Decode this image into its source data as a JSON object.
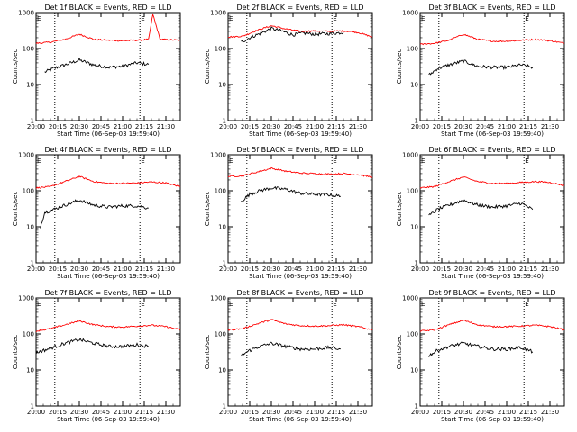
{
  "figure": {
    "background": "#ffffff",
    "event_color": "#000000",
    "lld_color": "#ff0000"
  },
  "chart_data": [
    {
      "type": "line",
      "title": "Det 1f BLACK = Events, RED = LLD",
      "xlabel": "Start Time (06-Sep-03 19:59:40)",
      "ylabel": "Counts/sec",
      "x_tick_labels": [
        "20:00",
        "20:15",
        "20:30",
        "20:45",
        "21:00",
        "21:15",
        "21:30"
      ],
      "y_tick_labels": [
        "1",
        "10",
        "100",
        "1000"
      ],
      "xlim": [
        "20:00",
        "21:40"
      ],
      "ylim": [
        1,
        1000
      ],
      "yscale": "log",
      "vertical_dotted_lines": [
        "20:13",
        "21:12"
      ],
      "markers": [
        {
          "text": "E",
          "x": "20:00"
        },
        {
          "text": "E",
          "x": "21:12"
        }
      ],
      "series": [
        {
          "color": "#000000",
          "x": [
            "20:06",
            "20:12",
            "20:20",
            "20:30",
            "20:40",
            "20:50",
            "21:00",
            "21:10",
            "21:18"
          ],
          "values": [
            22,
            28,
            35,
            48,
            35,
            30,
            32,
            40,
            36
          ]
        },
        {
          "color": "#ff0000",
          "x": [
            "20:00",
            "20:10",
            "20:20",
            "20:30",
            "20:40",
            "20:50",
            "21:00",
            "21:10",
            "21:18",
            "21:21",
            "21:26",
            "21:40"
          ],
          "values": [
            140,
            150,
            180,
            250,
            180,
            170,
            165,
            170,
            180,
            900,
            180,
            170
          ]
        }
      ]
    },
    {
      "type": "line",
      "title": "Det 2f BLACK = Events, RED = LLD",
      "xlabel": "Start Time (06-Sep-03 19:59:40)",
      "ylabel": "Counts/sec",
      "x_tick_labels": [
        "20:00",
        "20:15",
        "20:30",
        "20:45",
        "21:00",
        "21:15",
        "21:30"
      ],
      "y_tick_labels": [
        "1",
        "10",
        "100",
        "1000"
      ],
      "xlim": [
        "20:00",
        "21:40"
      ],
      "ylim": [
        1,
        1000
      ],
      "yscale": "log",
      "vertical_dotted_lines": [
        "20:13",
        "21:12"
      ],
      "markers": [
        {
          "text": "E",
          "x": "20:00"
        },
        {
          "text": "E",
          "x": "21:12"
        }
      ],
      "series": [
        {
          "color": "#000000",
          "x": [
            "20:09",
            "20:15",
            "20:22",
            "20:30",
            "20:38",
            "20:45",
            "20:52",
            "21:00",
            "21:10",
            "21:20"
          ],
          "values": [
            150,
            200,
            260,
            360,
            300,
            240,
            270,
            250,
            260,
            280
          ]
        },
        {
          "color": "#ff0000",
          "x": [
            "20:00",
            "20:10",
            "20:20",
            "20:30",
            "20:40",
            "20:50",
            "21:00",
            "21:10",
            "21:20",
            "21:30",
            "21:40"
          ],
          "values": [
            210,
            220,
            320,
            430,
            350,
            300,
            310,
            300,
            310,
            280,
            210
          ]
        }
      ]
    },
    {
      "type": "line",
      "title": "Det 3f BLACK = Events, RED = LLD",
      "xlabel": "Start Time (06-Sep-03 19:59:40)",
      "ylabel": "Counts/sec",
      "x_tick_labels": [
        "20:00",
        "20:15",
        "20:30",
        "20:45",
        "21:00",
        "21:15",
        "21:30"
      ],
      "y_tick_labels": [
        "1",
        "10",
        "100",
        "1000"
      ],
      "xlim": [
        "20:00",
        "21:40"
      ],
      "ylim": [
        1,
        1000
      ],
      "yscale": "log",
      "vertical_dotted_lines": [
        "20:13",
        "21:12"
      ],
      "markers": [
        {
          "text": "E",
          "x": "20:00"
        },
        {
          "text": "E",
          "x": "21:12"
        }
      ],
      "series": [
        {
          "color": "#000000",
          "x": [
            "20:06",
            "20:12",
            "20:20",
            "20:30",
            "20:40",
            "20:50",
            "21:00",
            "21:10",
            "21:18"
          ],
          "values": [
            18,
            28,
            35,
            45,
            32,
            30,
            30,
            35,
            30
          ]
        },
        {
          "color": "#ff0000",
          "x": [
            "20:00",
            "20:10",
            "20:20",
            "20:30",
            "20:40",
            "20:50",
            "21:00",
            "21:10",
            "21:20",
            "21:30",
            "21:40"
          ],
          "values": [
            130,
            140,
            170,
            250,
            180,
            160,
            160,
            170,
            180,
            165,
            140
          ]
        }
      ]
    },
    {
      "type": "line",
      "title": "Det 4f BLACK = Events, RED = LLD",
      "xlabel": "Start Time (06-Sep-03 19:59:40)",
      "ylabel": "Counts/sec",
      "x_tick_labels": [
        "20:00",
        "20:15",
        "20:30",
        "20:45",
        "21:00",
        "21:15",
        "21:30"
      ],
      "y_tick_labels": [
        "1",
        "10",
        "100",
        "1000"
      ],
      "xlim": [
        "20:00",
        "21:40"
      ],
      "ylim": [
        1,
        1000
      ],
      "yscale": "log",
      "vertical_dotted_lines": [
        "20:13",
        "21:12"
      ],
      "markers": [
        {
          "text": "E",
          "x": "20:00"
        },
        {
          "text": "E",
          "x": "21:12"
        }
      ],
      "series": [
        {
          "color": "#000000",
          "x": [
            "20:03",
            "20:06",
            "20:12",
            "20:20",
            "20:30",
            "20:40",
            "20:50",
            "21:00",
            "21:10",
            "21:18"
          ],
          "values": [
            10,
            25,
            30,
            40,
            55,
            40,
            35,
            38,
            38,
            33
          ]
        },
        {
          "color": "#ff0000",
          "x": [
            "20:00",
            "20:10",
            "20:20",
            "20:30",
            "20:40",
            "20:50",
            "21:00",
            "21:10",
            "21:20",
            "21:30",
            "21:40"
          ],
          "values": [
            120,
            130,
            180,
            250,
            180,
            160,
            160,
            165,
            175,
            165,
            130
          ]
        }
      ]
    },
    {
      "type": "line",
      "title": "Det 5f BLACK = Events, RED = LLD",
      "xlabel": "Start Time (06-Sep-03 19:59:40)",
      "ylabel": "Counts/sec",
      "x_tick_labels": [
        "20:00",
        "20:15",
        "20:30",
        "20:45",
        "21:00",
        "21:15",
        "21:30"
      ],
      "y_tick_labels": [
        "1",
        "10",
        "100",
        "1000"
      ],
      "xlim": [
        "20:00",
        "21:40"
      ],
      "ylim": [
        1,
        1000
      ],
      "yscale": "log",
      "vertical_dotted_lines": [
        "20:13",
        "21:12"
      ],
      "markers": [
        {
          "text": "E",
          "x": "20:00"
        },
        {
          "text": "E",
          "x": "21:12"
        }
      ],
      "series": [
        {
          "color": "#000000",
          "x": [
            "20:09",
            "20:15",
            "20:22",
            "20:30",
            "20:40",
            "20:50",
            "21:00",
            "21:10",
            "21:18"
          ],
          "values": [
            50,
            80,
            100,
            120,
            110,
            85,
            80,
            78,
            70
          ]
        },
        {
          "color": "#ff0000",
          "x": [
            "20:00",
            "20:10",
            "20:20",
            "20:30",
            "20:40",
            "20:50",
            "21:00",
            "21:10",
            "21:20",
            "21:30",
            "21:40"
          ],
          "values": [
            250,
            260,
            330,
            420,
            350,
            310,
            300,
            290,
            300,
            280,
            240
          ]
        }
      ]
    },
    {
      "type": "line",
      "title": "Det 6f BLACK = Events, RED = LLD",
      "xlabel": "Start Time (06-Sep-03 19:59:40)",
      "ylabel": "Counts/sec",
      "x_tick_labels": [
        "20:00",
        "20:15",
        "20:30",
        "20:45",
        "21:00",
        "21:15",
        "21:30"
      ],
      "y_tick_labels": [
        "1",
        "10",
        "100",
        "1000"
      ],
      "xlim": [
        "20:00",
        "21:40"
      ],
      "ylim": [
        1,
        1000
      ],
      "yscale": "log",
      "vertical_dotted_lines": [
        "20:13",
        "21:12"
      ],
      "markers": [
        {
          "text": "E",
          "x": "20:00"
        },
        {
          "text": "E",
          "x": "21:12"
        }
      ],
      "series": [
        {
          "color": "#000000",
          "x": [
            "20:06",
            "20:12",
            "20:20",
            "20:30",
            "20:40",
            "20:50",
            "21:00",
            "21:10",
            "21:18"
          ],
          "values": [
            20,
            30,
            40,
            55,
            40,
            35,
            38,
            45,
            30
          ]
        },
        {
          "color": "#ff0000",
          "x": [
            "20:00",
            "20:10",
            "20:20",
            "20:30",
            "20:40",
            "20:50",
            "21:00",
            "21:10",
            "21:20",
            "21:30",
            "21:40"
          ],
          "values": [
            120,
            130,
            180,
            240,
            180,
            160,
            160,
            170,
            180,
            170,
            140
          ]
        }
      ]
    },
    {
      "type": "line",
      "title": "Det 7f BLACK = Events, RED = LLD",
      "xlabel": "Start Time (06-Sep-03 19:59:40)",
      "ylabel": "Counts/sec",
      "x_tick_labels": [
        "20:00",
        "20:15",
        "20:30",
        "20:45",
        "21:00",
        "21:15",
        "21:30"
      ],
      "y_tick_labels": [
        "1",
        "10",
        "100",
        "1000"
      ],
      "xlim": [
        "20:00",
        "21:40"
      ],
      "ylim": [
        1,
        1000
      ],
      "yscale": "log",
      "vertical_dotted_lines": [
        "20:13",
        "21:12"
      ],
      "markers": [
        {
          "text": "E",
          "x": "20:00"
        },
        {
          "text": "E",
          "x": "21:12"
        }
      ],
      "series": [
        {
          "color": "#000000",
          "x": [
            "20:00",
            "20:10",
            "20:20",
            "20:30",
            "20:40",
            "20:50",
            "21:00",
            "21:10",
            "21:18"
          ],
          "values": [
            30,
            40,
            55,
            70,
            55,
            45,
            45,
            50,
            45
          ]
        },
        {
          "color": "#ff0000",
          "x": [
            "20:00",
            "20:10",
            "20:20",
            "20:30",
            "20:40",
            "20:50",
            "21:00",
            "21:10",
            "21:20",
            "21:30",
            "21:40"
          ],
          "values": [
            120,
            140,
            180,
            230,
            180,
            160,
            155,
            165,
            175,
            160,
            130
          ]
        }
      ]
    },
    {
      "type": "line",
      "title": "Det 8f BLACK = Events, RED = LLD",
      "xlabel": "Start Time (06-Sep-03 19:59:40)",
      "ylabel": "Counts/sec",
      "x_tick_labels": [
        "20:00",
        "20:15",
        "20:30",
        "20:45",
        "21:00",
        "21:15",
        "21:30"
      ],
      "y_tick_labels": [
        "1",
        "10",
        "100",
        "1000"
      ],
      "xlim": [
        "20:00",
        "21:40"
      ],
      "ylim": [
        1,
        1000
      ],
      "yscale": "log",
      "vertical_dotted_lines": [
        "20:13",
        "21:12"
      ],
      "markers": [
        {
          "text": "E",
          "x": "20:00"
        },
        {
          "text": "E",
          "x": "21:12"
        }
      ],
      "series": [
        {
          "color": "#000000",
          "x": [
            "20:09",
            "20:15",
            "20:22",
            "20:30",
            "20:40",
            "20:50",
            "21:00",
            "21:10",
            "21:18"
          ],
          "values": [
            25,
            35,
            45,
            55,
            45,
            38,
            38,
            42,
            38
          ]
        },
        {
          "color": "#ff0000",
          "x": [
            "20:00",
            "20:10",
            "20:20",
            "20:30",
            "20:40",
            "20:50",
            "21:00",
            "21:10",
            "21:20",
            "21:30",
            "21:40"
          ],
          "values": [
            130,
            140,
            190,
            250,
            190,
            170,
            165,
            170,
            180,
            160,
            130
          ]
        }
      ]
    },
    {
      "type": "line",
      "title": "Det 9f BLACK = Events, RED = LLD",
      "xlabel": "Start Time (06-Sep-03 19:59:40)",
      "ylabel": "Counts/sec",
      "x_tick_labels": [
        "20:00",
        "20:15",
        "20:30",
        "20:45",
        "21:00",
        "21:15",
        "21:30"
      ],
      "y_tick_labels": [
        "1",
        "10",
        "100",
        "1000"
      ],
      "xlim": [
        "20:00",
        "21:40"
      ],
      "ylim": [
        1,
        1000
      ],
      "yscale": "log",
      "vertical_dotted_lines": [
        "20:13",
        "21:12"
      ],
      "markers": [
        {
          "text": "E",
          "x": "20:00"
        },
        {
          "text": "E",
          "x": "21:12"
        }
      ],
      "series": [
        {
          "color": "#000000",
          "x": [
            "20:06",
            "20:12",
            "20:20",
            "20:30",
            "20:40",
            "20:50",
            "21:00",
            "21:10",
            "21:18"
          ],
          "values": [
            25,
            35,
            45,
            55,
            45,
            38,
            38,
            42,
            32
          ]
        },
        {
          "color": "#ff0000",
          "x": [
            "20:00",
            "20:10",
            "20:20",
            "20:30",
            "20:40",
            "20:50",
            "21:00",
            "21:10",
            "21:20",
            "21:30",
            "21:40"
          ],
          "values": [
            120,
            130,
            180,
            240,
            180,
            160,
            160,
            165,
            175,
            160,
            130
          ]
        }
      ]
    }
  ]
}
